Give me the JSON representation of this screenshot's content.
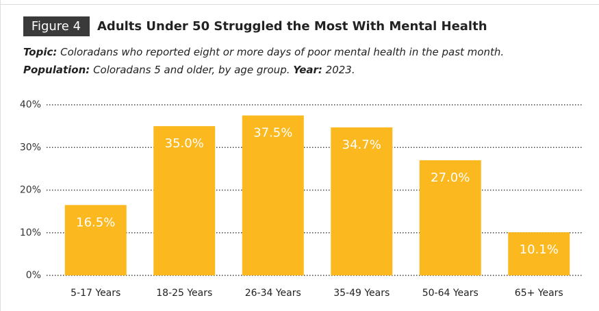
{
  "chart_data": {
    "type": "bar",
    "figure_label": "Figure 4",
    "title": "Adults Under 50 Struggled the Most With Mental Health",
    "topic_label": "Topic:",
    "topic": "Coloradans who reported eight or more days of poor mental health in the past month.",
    "population_label": "Population:",
    "population": "Coloradans 5 and older, by age group.",
    "year_label": "Year:",
    "year": "2023.",
    "categories": [
      "5-17 Years",
      "18-25 Years",
      "26-34 Years",
      "35-49 Years",
      "50-64 Years",
      "65+ Years"
    ],
    "values": [
      16.5,
      35.0,
      37.5,
      34.7,
      27.0,
      10.1
    ],
    "value_labels": [
      "16.5%",
      "35.0%",
      "37.5%",
      "34.7%",
      "27.0%",
      "10.1%"
    ],
    "color": "#fbb81f",
    "ylim": [
      0,
      40
    ],
    "yticks": [
      {
        "value": 0,
        "label": "0%"
      },
      {
        "value": 10,
        "label": "10%"
      },
      {
        "value": 20,
        "label": "20%"
      },
      {
        "value": 30,
        "label": "30%"
      },
      {
        "value": 40,
        "label": "40%"
      }
    ],
    "grid": true
  }
}
